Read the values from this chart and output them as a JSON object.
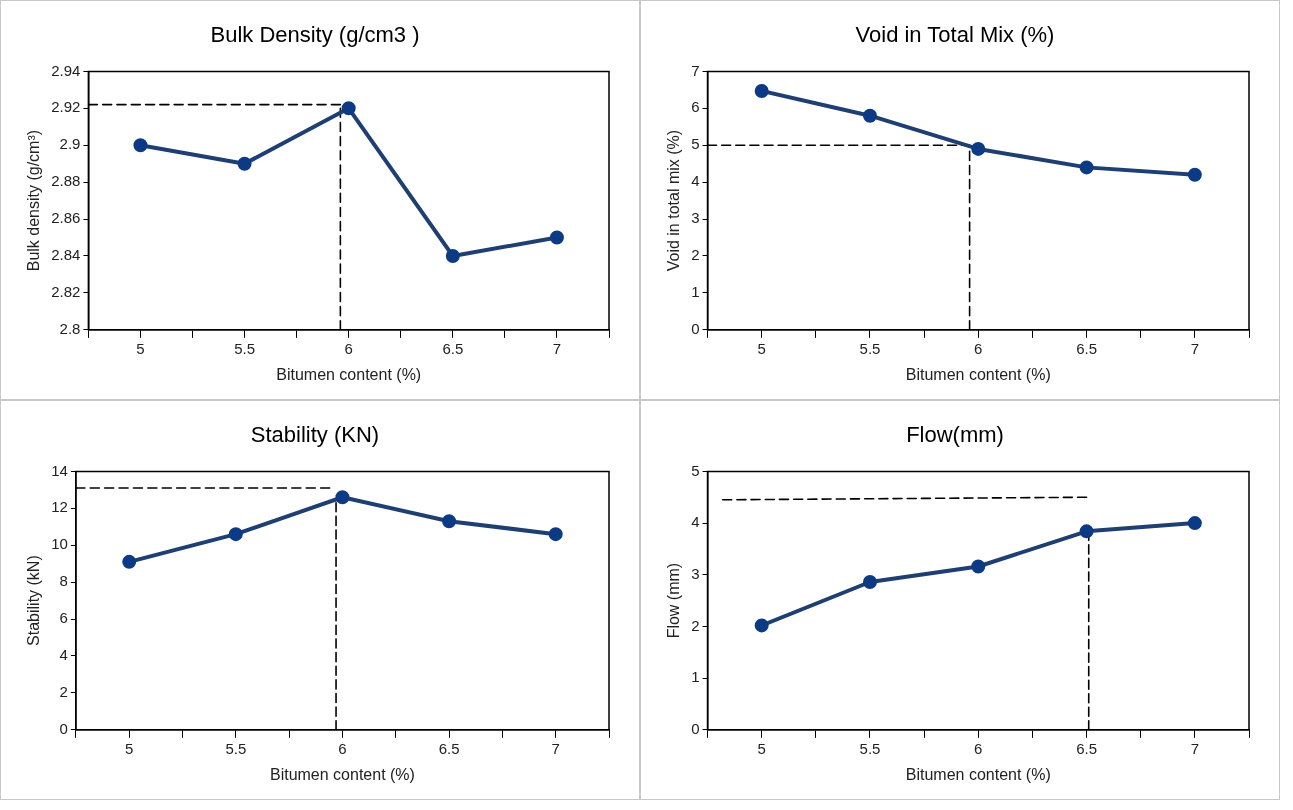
{
  "chart_data": [
    {
      "type": "line",
      "title": "Bulk Density (g/cm3 )",
      "xlabel": "Bitumen content (%)",
      "ylabel": "Bulk density (g/cm³)",
      "xlim": [
        4.75,
        7.25
      ],
      "xticks": [
        {
          "value": 4.75,
          "label": null
        },
        5,
        {
          "value": 5.25,
          "label": null
        },
        5.5,
        {
          "value": 5.75,
          "label": null
        },
        6,
        {
          "value": 6.25,
          "label": null
        },
        6.5,
        {
          "value": 6.75,
          "label": null
        },
        7,
        {
          "value": 7.25,
          "label": null
        }
      ],
      "ylim": [
        2.8,
        2.94
      ],
      "yticks": [
        2.8,
        2.82,
        2.84,
        2.86,
        2.88,
        2.9,
        2.92,
        2.94
      ],
      "grid": false,
      "legend": false,
      "marker": "circle",
      "series": [
        {
          "color": "#1f3f73",
          "x": [
            5,
            5.5,
            6,
            6.5,
            7
          ],
          "values": [
            2.9,
            2.89,
            2.92,
            2.84,
            2.85
          ]
        },
        {
          "type": "line",
          "color": "#000000",
          "line_style": "dashed",
          "marker": "none",
          "x": [
            4.75,
            5.96
          ],
          "values": [
            2.922,
            2.922
          ]
        },
        {
          "type": "line",
          "color": "#000000",
          "line_style": "dashed",
          "marker": "none",
          "x": [
            5.96,
            5.96
          ],
          "values": [
            2.92,
            2.8
          ]
        }
      ]
    },
    {
      "type": "line",
      "title": "Void in Total Mix (%)",
      "xlabel": "Bitumen content (%)",
      "ylabel": "Void in total mix (%)",
      "xlim": [
        4.75,
        7.25
      ],
      "xticks": [
        {
          "value": 4.75,
          "label": null
        },
        5,
        {
          "value": 5.25,
          "label": null
        },
        5.5,
        {
          "value": 5.75,
          "label": null
        },
        6,
        {
          "value": 6.25,
          "label": null
        },
        6.5,
        {
          "value": 6.75,
          "label": null
        },
        7,
        {
          "value": 7.25,
          "label": null
        }
      ],
      "ylim": [
        0,
        7
      ],
      "yticks": [
        0,
        1,
        2,
        3,
        4,
        5,
        6,
        7
      ],
      "grid": false,
      "legend": false,
      "marker": "circle",
      "series": [
        {
          "color": "#1f3f73",
          "x": [
            5,
            5.5,
            6,
            6.5,
            7
          ],
          "values": [
            6.47,
            5.8,
            4.9,
            4.4,
            4.2
          ]
        },
        {
          "type": "line",
          "color": "#000000",
          "line_style": "dashed",
          "marker": "none",
          "x": [
            4.75,
            5.96,
            5.96
          ],
          "values": [
            5,
            5,
            0
          ]
        }
      ]
    },
    {
      "type": "line",
      "title": "Stability (KN)",
      "xlabel": "Bitumen content (%)",
      "ylabel": "Stability (kN)",
      "xlim": [
        4.75,
        7.25
      ],
      "xticks": [
        {
          "value": 4.75,
          "label": null
        },
        5,
        {
          "value": 5.25,
          "label": null
        },
        5.5,
        {
          "value": 5.75,
          "label": null
        },
        6,
        {
          "value": 6.25,
          "label": null
        },
        6.5,
        {
          "value": 6.75,
          "label": null
        },
        7,
        {
          "value": 7.25,
          "label": null
        }
      ],
      "ylim": [
        0,
        14
      ],
      "yticks": [
        0,
        2,
        4,
        6,
        8,
        10,
        12,
        14
      ],
      "grid": false,
      "legend": false,
      "marker": "circle",
      "series": [
        {
          "color": "#1f3f73",
          "x": [
            5,
            5.5,
            6,
            6.5,
            7
          ],
          "values": [
            9.1,
            10.6,
            12.6,
            11.3,
            10.6
          ]
        },
        {
          "type": "line",
          "color": "#000000",
          "line_style": "dashed",
          "marker": "none",
          "x": [
            4.75,
            5.94
          ],
          "values": [
            13.1,
            13.1
          ]
        },
        {
          "type": "line",
          "color": "#000000",
          "line_style": "dashed",
          "marker": "none",
          "x": [
            5.97,
            5.97
          ],
          "values": [
            12.3,
            0
          ]
        }
      ]
    },
    {
      "type": "line",
      "title": "Flow(mm)",
      "xlabel": "Bitumen content (%)",
      "ylabel": "Flow (mm)",
      "xlim": [
        4.75,
        7.25
      ],
      "xticks": [
        {
          "value": 4.75,
          "label": null
        },
        5,
        {
          "value": 5.25,
          "label": null
        },
        5.5,
        {
          "value": 5.75,
          "label": null
        },
        6,
        {
          "value": 6.25,
          "label": null
        },
        6.5,
        {
          "value": 6.75,
          "label": null
        },
        7,
        {
          "value": 7.25,
          "label": null
        }
      ],
      "ylim": [
        0,
        5
      ],
      "yticks": [
        0,
        1,
        2,
        3,
        4,
        5
      ],
      "grid": false,
      "legend": false,
      "marker": "circle",
      "series": [
        {
          "color": "#1f3f73",
          "x": [
            5,
            5.5,
            6,
            6.5,
            7
          ],
          "values": [
            2.02,
            2.86,
            3.16,
            3.84,
            4.0
          ]
        },
        {
          "type": "line",
          "color": "#000000",
          "line_style": "dashed",
          "marker": "none",
          "x": [
            4.82,
            6.5
          ],
          "values": [
            4.45,
            4.5
          ]
        },
        {
          "type": "line",
          "color": "#000000",
          "line_style": "dashed",
          "marker": "none",
          "x": [
            6.51,
            6.51
          ],
          "values": [
            3.84,
            0
          ]
        }
      ]
    }
  ]
}
